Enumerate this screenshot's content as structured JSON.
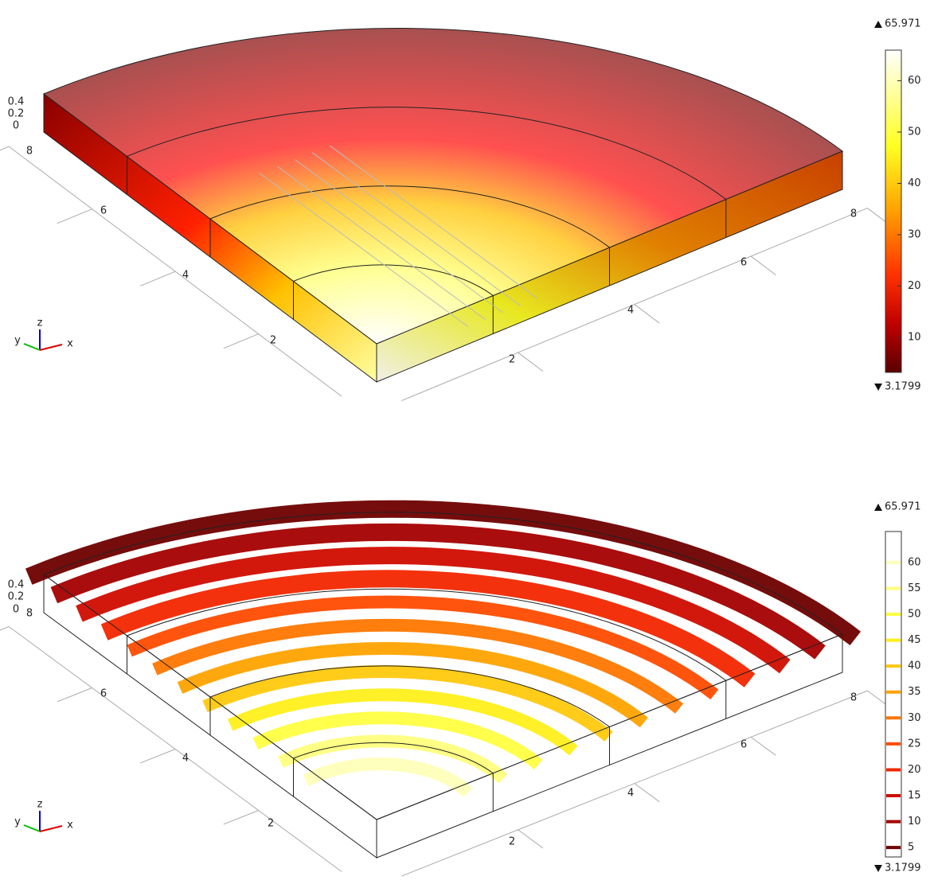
{
  "plots": [
    {
      "axes": {
        "x_ticks": [
          "2",
          "4",
          "6",
          "8"
        ],
        "y_ticks": [
          "2",
          "4",
          "6",
          "8"
        ],
        "z_ticks": [
          "0.4",
          "0.2",
          "0"
        ]
      },
      "triad": [
        "x",
        "y",
        "z"
      ],
      "colorbar": {
        "max": 65.971,
        "min": 3.1799,
        "ticks": [
          10,
          20,
          30,
          40,
          50,
          60
        ]
      }
    },
    {
      "axes": {
        "x_ticks": [
          "2",
          "4",
          "6",
          "8"
        ],
        "y_ticks": [
          "2",
          "4",
          "6",
          "8"
        ],
        "z_ticks": [
          "0.4",
          "0.2",
          "0"
        ]
      },
      "triad": [
        "x",
        "y",
        "z"
      ],
      "colorbar": {
        "max": 65.971,
        "min": 3.1799,
        "ticks": [
          5,
          10,
          15,
          20,
          25,
          30,
          35,
          40,
          45,
          50,
          55,
          60
        ]
      }
    }
  ]
}
